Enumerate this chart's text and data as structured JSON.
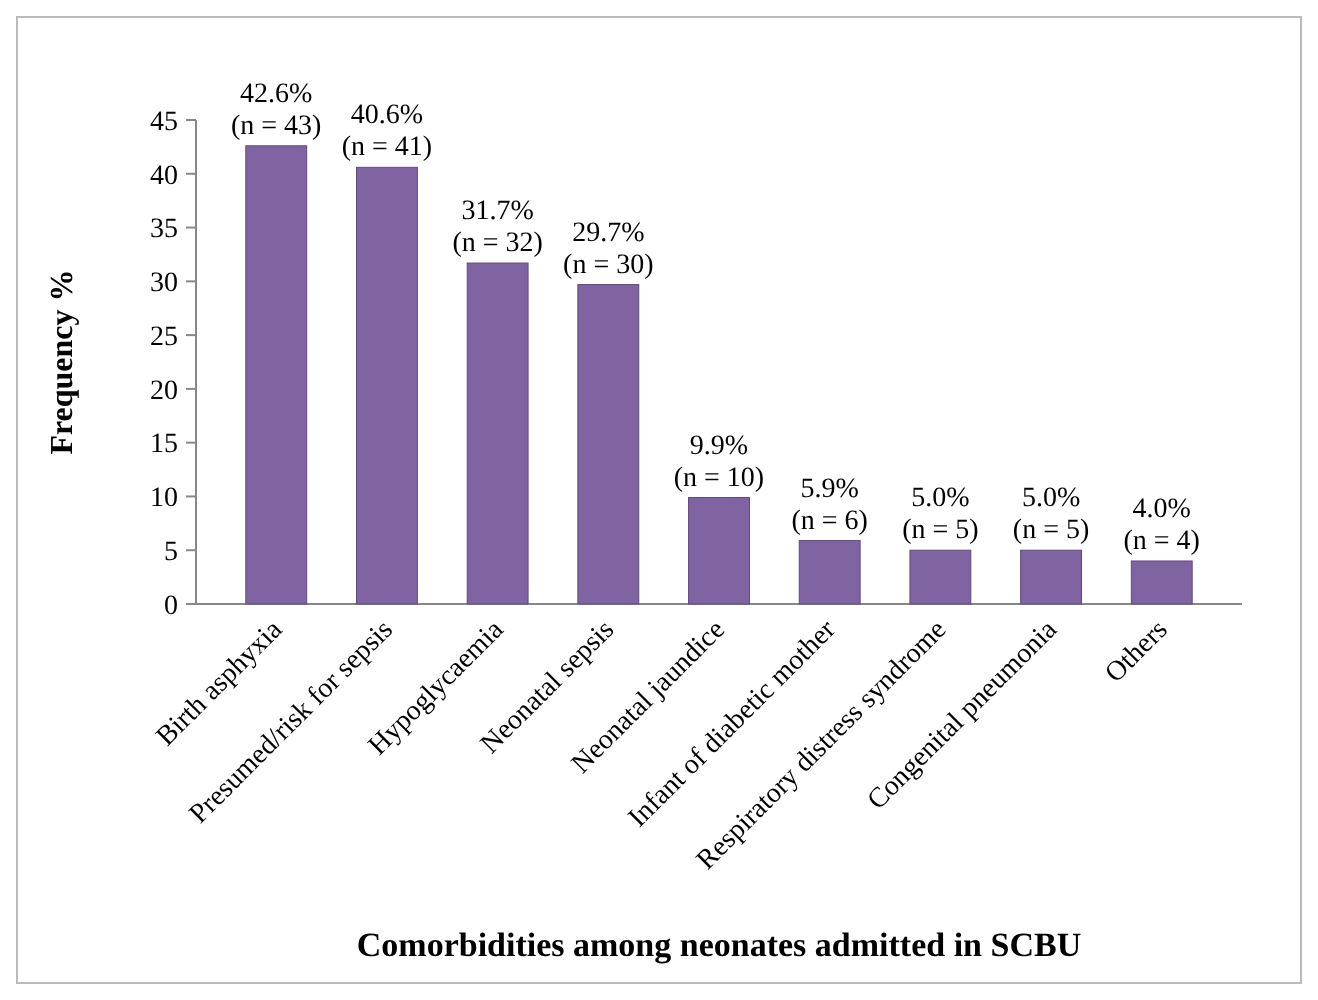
{
  "chart_data": {
    "type": "bar",
    "xlabel": "Comorbidities among neonates admitted in SCBU",
    "ylabel": "Frequency %",
    "categories": [
      "Birth asphyxia",
      "Presumed/risk for sepsis",
      "Hypoglycaemia",
      "Neonatal sepsis",
      "Neonatal jaundice",
      "Infant of diabetic mother",
      "Respiratory distress syndrome",
      "Congenital pneumonia",
      "Others"
    ],
    "values": [
      42.6,
      40.6,
      31.7,
      29.7,
      9.9,
      5.9,
      5.0,
      5.0,
      4.0
    ],
    "value_labels": [
      "42.6%\n(n = 43)",
      "40.6%\n(n = 41)",
      "31.7%\n(n = 32)",
      "29.7%\n(n = 30)",
      "9.9%\n(n = 10)",
      "5.9%\n(n = 6)",
      "5.0%\n(n = 5)",
      "5.0%\n(n = 5)",
      "4.0%\n(n = 4)"
    ],
    "color": "#8064a2",
    "ylim": [
      0,
      45
    ],
    "yticks": [
      0,
      5,
      10,
      15,
      20,
      25,
      30,
      35,
      40,
      45
    ],
    "grid": false
  }
}
